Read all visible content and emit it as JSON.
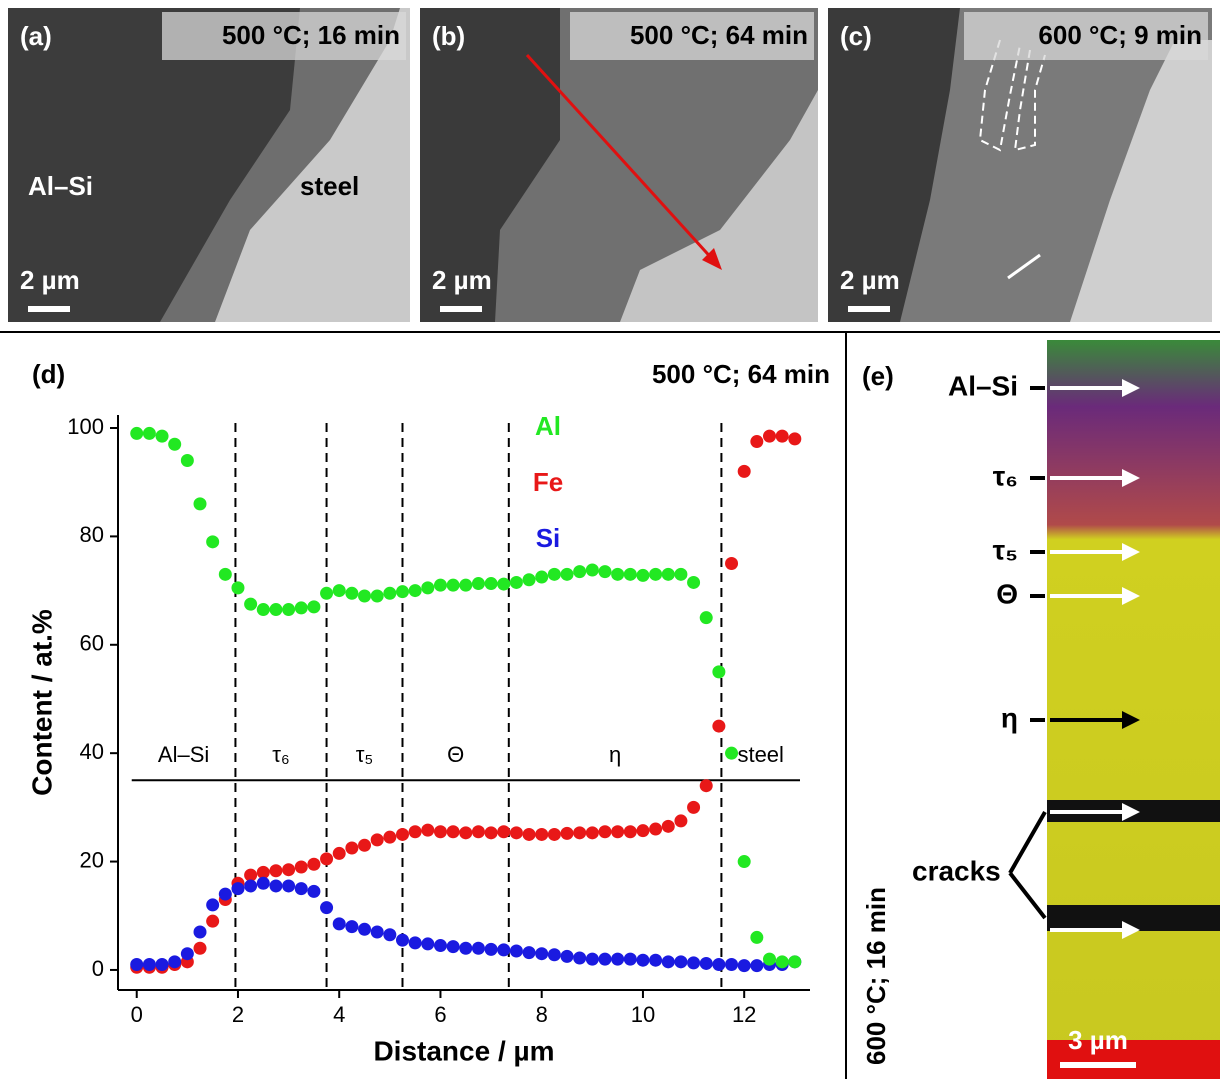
{
  "panels": [
    {
      "label": "(a)",
      "condition": "500 °C; 16 min",
      "scale": "2 µm",
      "notes": [
        "Al–Si",
        "steel"
      ]
    },
    {
      "label": "(b)",
      "condition": "500 °C; 64 min",
      "scale": "2 µm"
    },
    {
      "label": "(c)",
      "condition": "600 °C; 9 min",
      "scale": "2 µm"
    },
    {
      "label": "(e)",
      "condition": "600 °C; 16 min",
      "scale": "3 µm",
      "phases": [
        "Al–Si",
        "τ₆",
        "τ₅",
        "Θ",
        "η"
      ],
      "cracks": "cracks"
    }
  ],
  "chart_data": {
    "type": "scatter",
    "label": "(d)",
    "title": "500 °C; 64 min",
    "xlabel": "Distance / µm",
    "ylabel": "Content / at.%",
    "xlim": [
      -0.37,
      13.3
    ],
    "ylim": [
      -3.7,
      102.4
    ],
    "xticks": [
      0,
      2,
      4,
      6,
      8,
      10,
      12
    ],
    "yticks": [
      0,
      20,
      40,
      60,
      80,
      100
    ],
    "boundaries": [
      1.95,
      3.75,
      5.25,
      7.35,
      11.55
    ],
    "phase_line": 35,
    "phases": [
      "Al–Si",
      "τ₆",
      "τ₅",
      "Θ",
      "η",
      "steel"
    ],
    "x": [
      0,
      0.25,
      0.5,
      0.75,
      1,
      1.25,
      1.5,
      1.75,
      2,
      2.25,
      2.5,
      2.75,
      3,
      3.25,
      3.5,
      3.75,
      4,
      4.25,
      4.5,
      4.75,
      5,
      5.25,
      5.5,
      5.75,
      6,
      6.25,
      6.5,
      6.75,
      7,
      7.25,
      7.5,
      7.75,
      8,
      8.25,
      8.5,
      8.75,
      9,
      9.25,
      9.5,
      9.75,
      10,
      10.25,
      10.5,
      10.75,
      11,
      11.25,
      11.5,
      11.75,
      12,
      12.25,
      12.5,
      12.75,
      13
    ],
    "series": [
      {
        "name": "Fe",
        "color": "#e81818",
        "values": [
          0.5,
          0.5,
          0.5,
          1,
          1.5,
          4,
          9,
          13,
          16,
          17.5,
          18,
          18.3,
          18.5,
          19,
          19.5,
          20.5,
          21.5,
          22.5,
          23,
          24,
          24.5,
          25,
          25.5,
          25.8,
          25.5,
          25.5,
          25.3,
          25.5,
          25.3,
          25.5,
          25.3,
          25,
          25,
          25,
          25.2,
          25.3,
          25.3,
          25.5,
          25.5,
          25.5,
          25.7,
          26,
          26.5,
          27.5,
          30,
          34,
          45,
          75,
          92,
          97.5,
          98.5,
          98.5,
          98
        ]
      },
      {
        "name": "Si",
        "color": "#1a1ae0",
        "values": [
          1,
          1,
          1,
          1.5,
          3,
          7,
          12,
          14,
          15,
          15.5,
          16,
          15.5,
          15.5,
          15,
          14.5,
          11.5,
          8.5,
          8,
          7.5,
          7,
          6.5,
          5.5,
          5,
          4.8,
          4.5,
          4.3,
          4,
          4,
          3.8,
          3.7,
          3.5,
          3.2,
          3,
          2.8,
          2.5,
          2.2,
          2,
          2,
          2,
          2,
          1.8,
          1.8,
          1.5,
          1.5,
          1.3,
          1.2,
          1,
          1,
          0.8,
          0.8,
          1,
          1,
          1.5
        ]
      },
      {
        "name": "Al",
        "color": "#22e822",
        "values": [
          99,
          99,
          98.5,
          97,
          94,
          86,
          79,
          73,
          70.5,
          67.5,
          66.5,
          66.5,
          66.5,
          66.8,
          67,
          69.5,
          70,
          69.5,
          69,
          69,
          69.5,
          69.8,
          70,
          70.5,
          71,
          71,
          71,
          71.3,
          71.3,
          71.2,
          71.5,
          72,
          72.5,
          73,
          73,
          73.5,
          73.8,
          73.5,
          73,
          73,
          72.8,
          73,
          73,
          73,
          71.5,
          65,
          55,
          40,
          20,
          6,
          2,
          1.5,
          1.5
        ]
      }
    ]
  }
}
